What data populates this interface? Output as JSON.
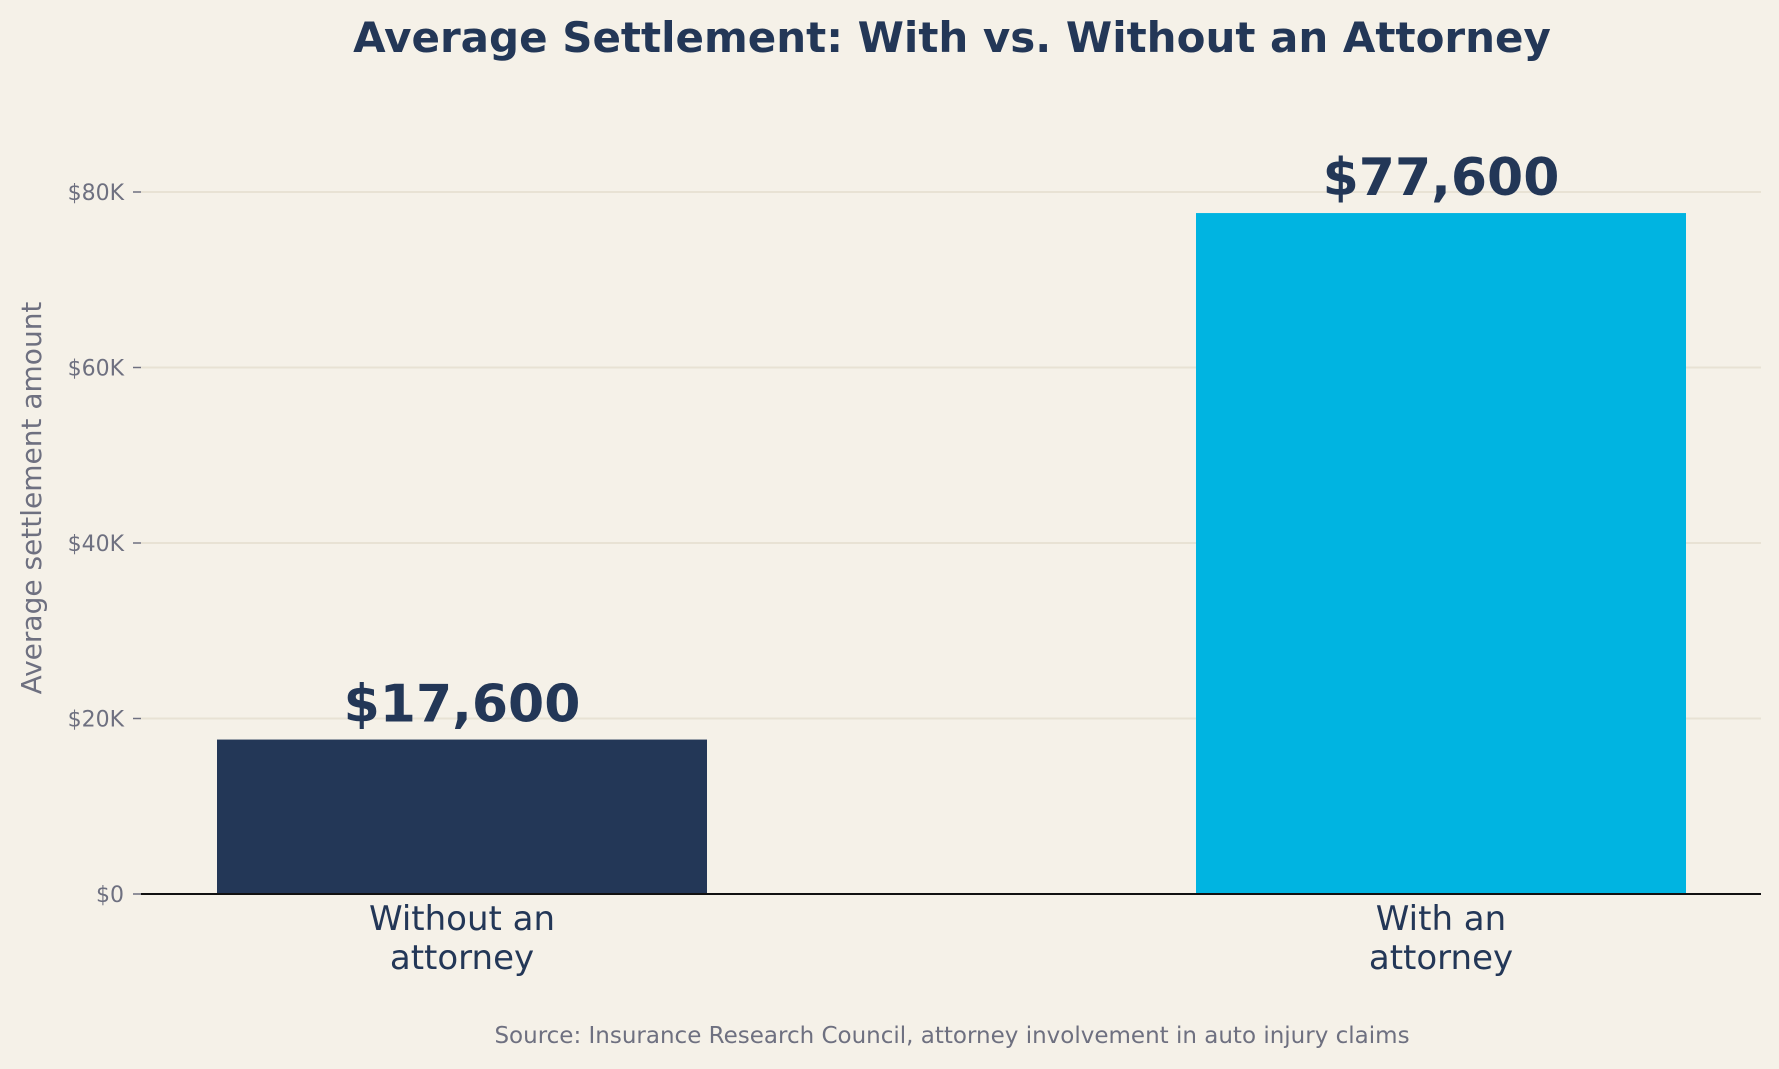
{
  "chart_data": {
    "type": "bar",
    "title": "Average Settlement: With vs. Without an Attorney",
    "ylabel": "Average settlement amount",
    "xlabel": "",
    "categories": [
      [
        "Without an",
        "attorney"
      ],
      [
        "With an",
        "attorney"
      ]
    ],
    "values": [
      17600,
      77600
    ],
    "value_labels": [
      "$17,600",
      "$77,600"
    ],
    "bar_colors": [
      "#233757",
      "#00b4e1"
    ],
    "ylim": [
      0,
      90000
    ],
    "yticks": [
      0,
      20000,
      40000,
      60000,
      80000
    ],
    "ytick_labels": [
      "$0",
      "$20K",
      "$40K",
      "$60K",
      "$80K"
    ],
    "grid": true,
    "legend": "none",
    "source": "Source: Insurance Research Council, attorney involvement in auto injury claims"
  }
}
